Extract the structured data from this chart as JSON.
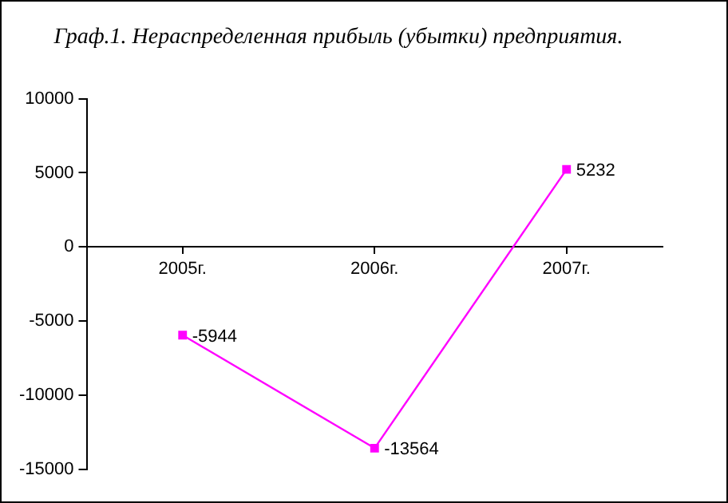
{
  "chart_data": {
    "type": "line",
    "title": "Граф.1. Нераспределенная прибыль (убытки) предприятия.",
    "categories": [
      "2005г.",
      "2006г.",
      "2007г."
    ],
    "series": [
      {
        "color": "#ff00ff",
        "values": [
          -5944,
          -13564,
          5232
        ]
      }
    ],
    "ylim": [
      -15000,
      10000
    ],
    "yticks": [
      -15000,
      -10000,
      -5000,
      0,
      5000,
      10000
    ],
    "grid": false,
    "legend": false,
    "marker": "square",
    "line_style": "solid",
    "data_labels": true
  }
}
